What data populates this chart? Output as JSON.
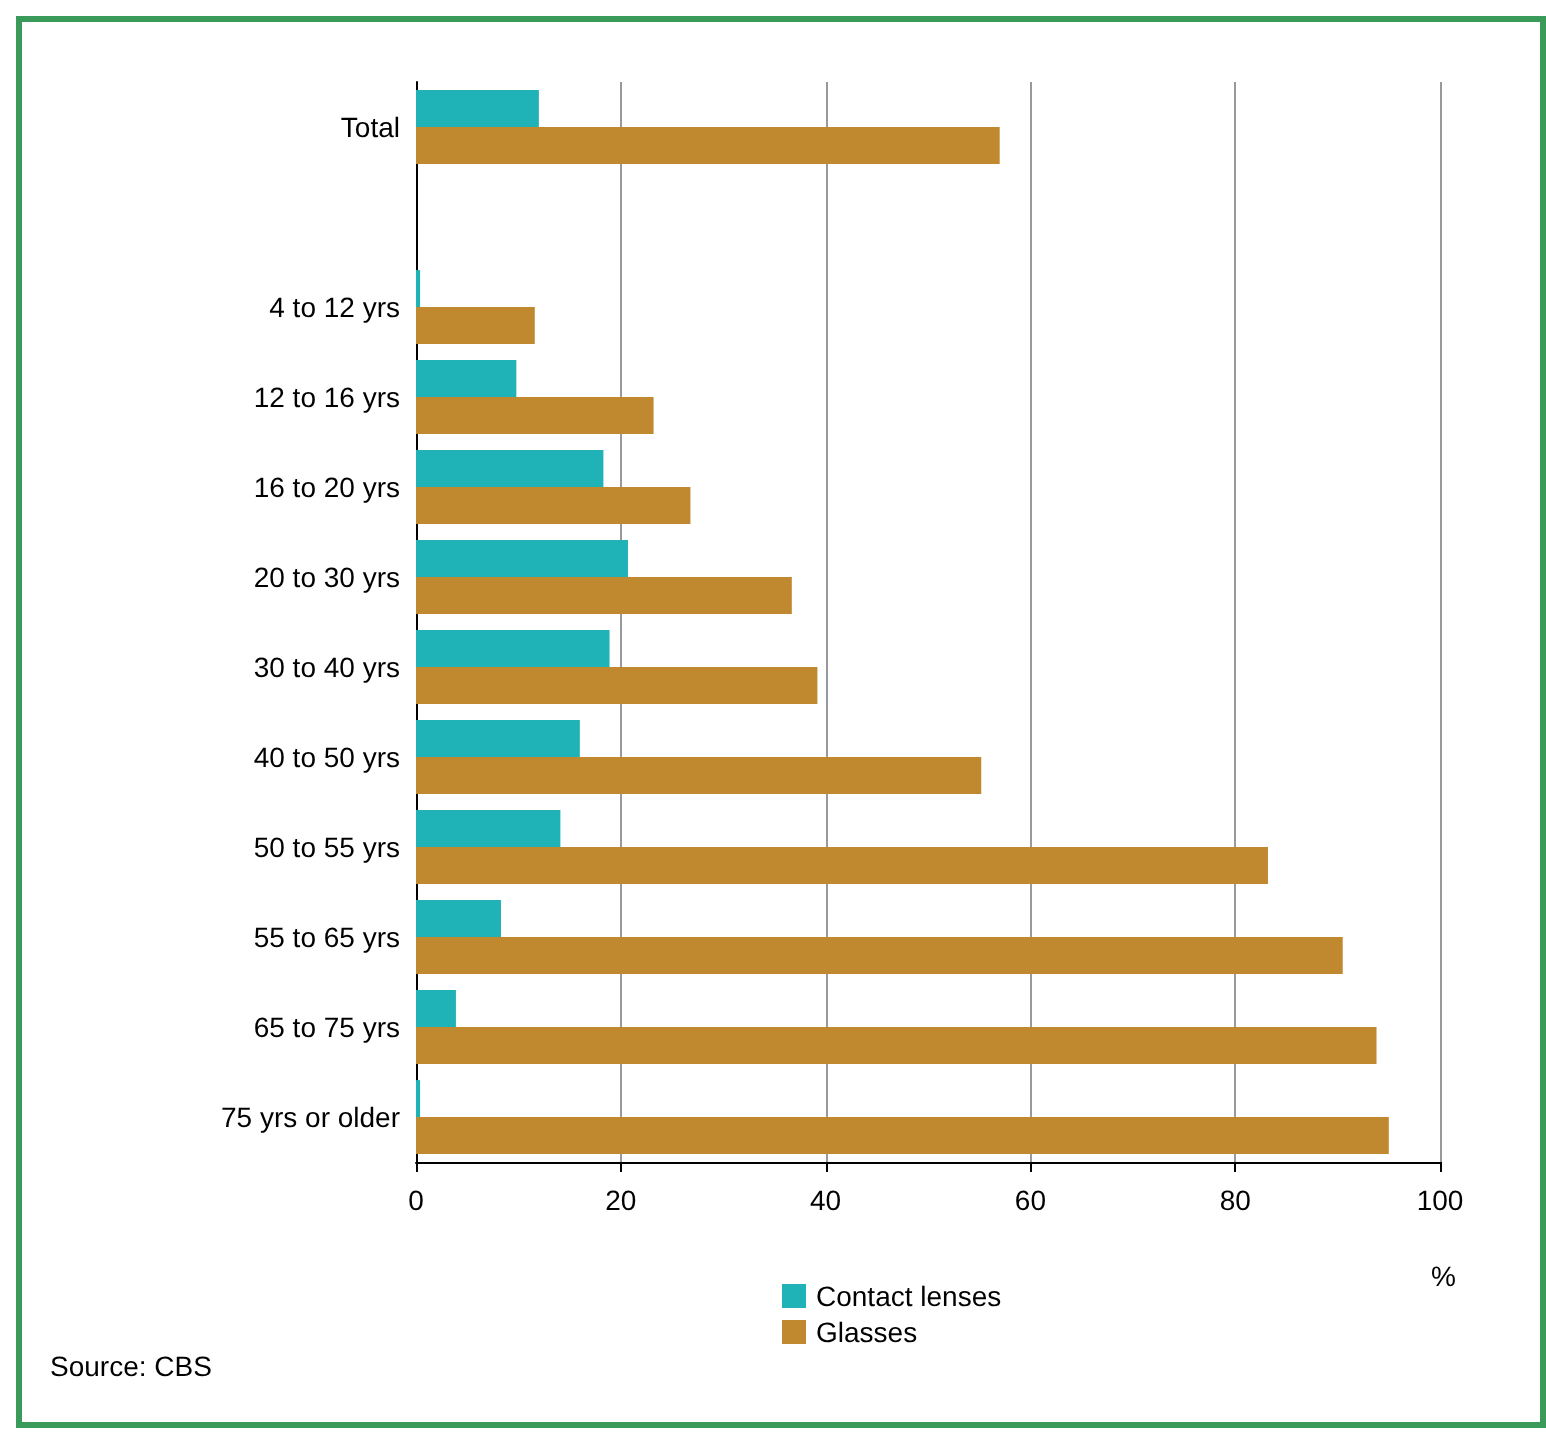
{
  "chart_data": {
    "type": "bar",
    "orientation": "horizontal",
    "categories": [
      "Total",
      null,
      "4 to 12 yrs",
      "12 to 16 yrs",
      "16 to 20 yrs",
      "20 to 30 yrs",
      "30 to 40 yrs",
      "40 to 50 yrs",
      "50 to 55 yrs",
      "55 to 65 yrs",
      "65 to 75 yrs",
      "75 yrs or older"
    ],
    "series": [
      {
        "name": "Contact lenses",
        "color": "#1fb3b8",
        "values": [
          12,
          null,
          0.4,
          9.8,
          18.3,
          20.7,
          18.9,
          16,
          14.1,
          8.3,
          3.9,
          0.4
        ]
      },
      {
        "name": "Glasses",
        "color": "#c0882f",
        "values": [
          57,
          null,
          11.6,
          23.2,
          26.8,
          36.7,
          39.2,
          55.2,
          83.2,
          90.5,
          93.8,
          95
        ]
      }
    ],
    "xlim": [
      0,
      100
    ],
    "xticks": [
      0,
      20,
      40,
      60,
      80,
      100
    ],
    "xlabel": "%",
    "grid": "x",
    "legend": "bottom",
    "annotations": [
      "Source: CBS"
    ]
  }
}
